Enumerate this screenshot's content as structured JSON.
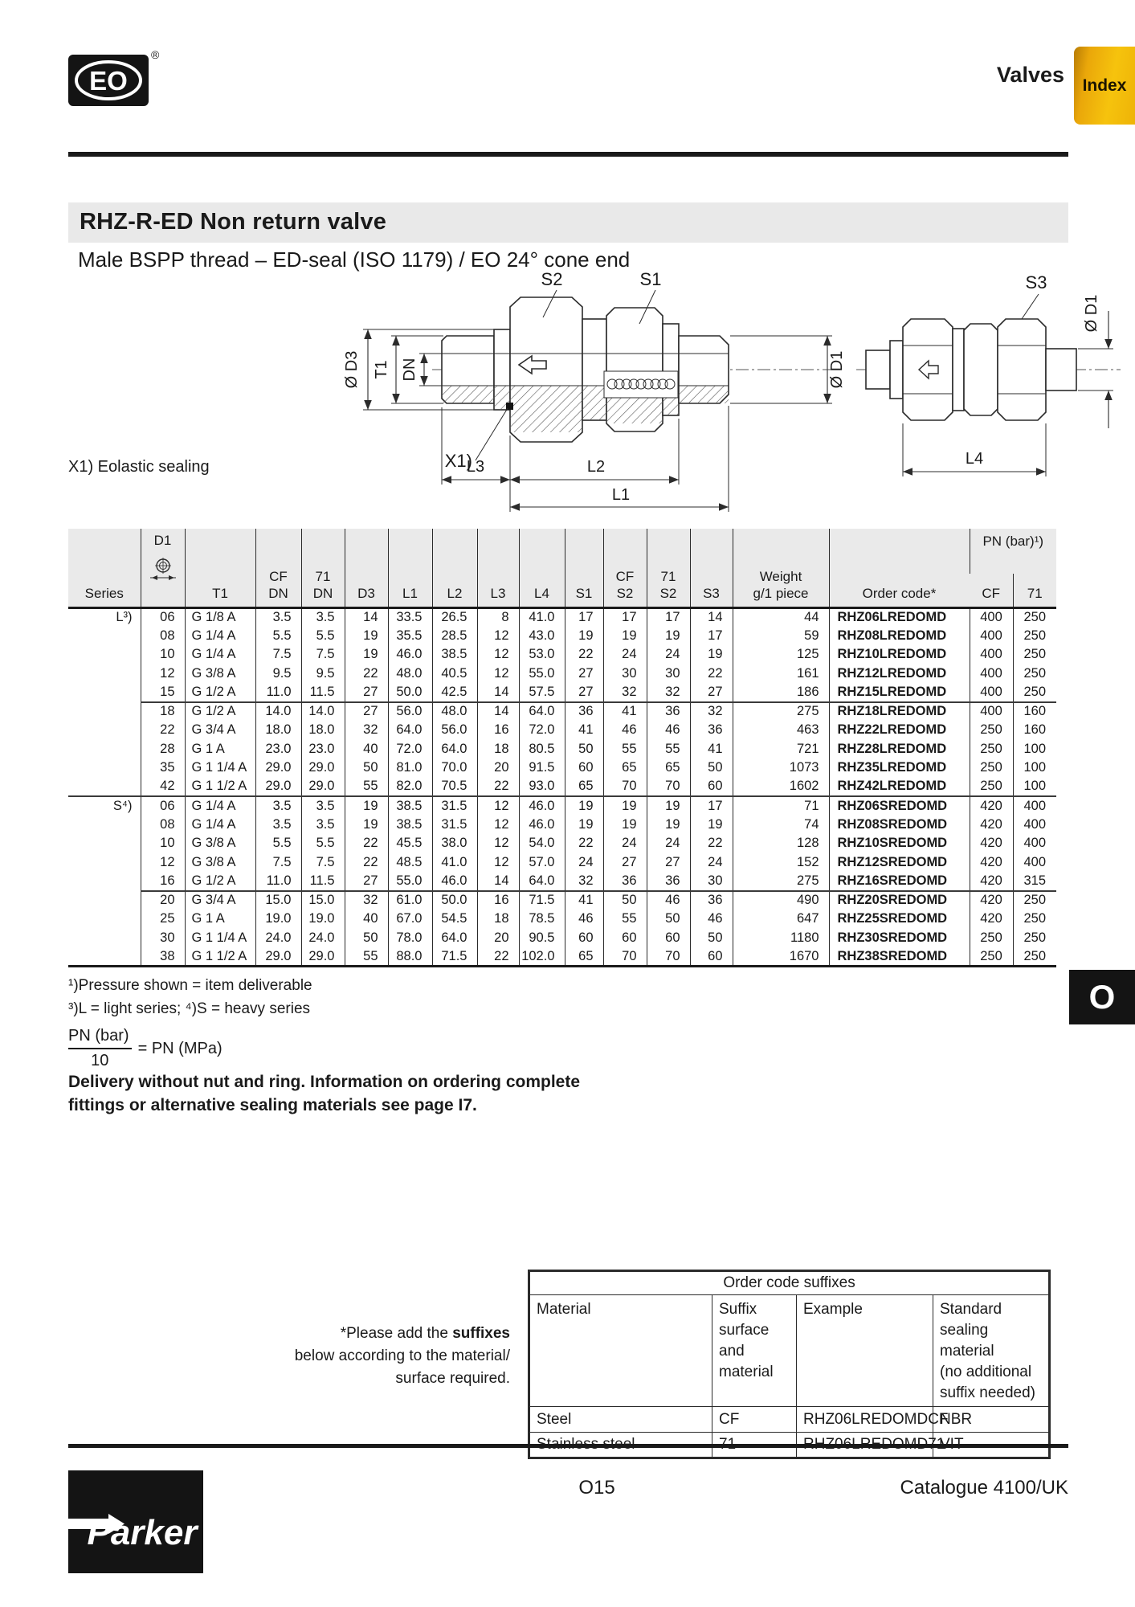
{
  "header": {
    "logo_text": "EO",
    "registered": "®",
    "section_title": "Valves",
    "index_tab": "Index"
  },
  "title_bar": {
    "title": "RHZ-R-ED  Non return valve"
  },
  "subtitle": "Male BSPP thread – ED-seal (ISO 1179) / EO 24° cone end",
  "drawing": {
    "note": "X1) Eolastic sealing",
    "labels": {
      "s1": "S1",
      "s2": "S2",
      "s3": "S3",
      "d3": "Ø D3",
      "t1": "T1",
      "dn": "DN",
      "d1_main": "Ø D1",
      "d1_side": "Ø D1",
      "x1": "X1)",
      "l1": "L1",
      "l2": "L2",
      "l3": "L3",
      "l4": "L4"
    }
  },
  "table": {
    "headers": {
      "series": "Series",
      "d1": "D1",
      "t1": "T1",
      "cf": "CF",
      "dn": "DN",
      "n71": "71",
      "d3": "D3",
      "l1": "L1",
      "l2": "L2",
      "l3": "L3",
      "l4": "L4",
      "s1": "S1",
      "s2": "S2",
      "s3": "S3",
      "weight_line1": "Weight",
      "weight_line2": "g/1 piece",
      "order_code": "Order code*",
      "pn": "PN (bar)¹)",
      "pn_cf": "CF",
      "pn_71": "71"
    },
    "rows": [
      {
        "s": "L³)",
        "sep": "",
        "c": [
          "06",
          "G 1/8 A",
          "3.5",
          "3.5",
          "14",
          "33.5",
          "26.5",
          "8",
          "41.0",
          "17",
          "17",
          "17",
          "14",
          "44",
          "RHZ06LREDOMD",
          "400",
          "250"
        ]
      },
      {
        "s": "",
        "sep": "",
        "c": [
          "08",
          "G 1/4 A",
          "5.5",
          "5.5",
          "19",
          "35.5",
          "28.5",
          "12",
          "43.0",
          "19",
          "19",
          "19",
          "17",
          "59",
          "RHZ08LREDOMD",
          "400",
          "250"
        ]
      },
      {
        "s": "",
        "sep": "",
        "c": [
          "10",
          "G 1/4 A",
          "7.5",
          "7.5",
          "19",
          "46.0",
          "38.5",
          "12",
          "53.0",
          "22",
          "24",
          "24",
          "19",
          "125",
          "RHZ10LREDOMD",
          "400",
          "250"
        ]
      },
      {
        "s": "",
        "sep": "",
        "c": [
          "12",
          "G 3/8 A",
          "9.5",
          "9.5",
          "22",
          "48.0",
          "40.5",
          "12",
          "55.0",
          "27",
          "30",
          "30",
          "22",
          "161",
          "RHZ12LREDOMD",
          "400",
          "250"
        ]
      },
      {
        "s": "",
        "sep": "",
        "c": [
          "15",
          "G 1/2 A",
          "11.0",
          "11.5",
          "27",
          "50.0",
          "42.5",
          "14",
          "57.5",
          "27",
          "32",
          "32",
          "27",
          "186",
          "RHZ15LREDOMD",
          "400",
          "250"
        ]
      },
      {
        "s": "",
        "sep": "part",
        "c": [
          "18",
          "G 1/2 A",
          "14.0",
          "14.0",
          "27",
          "56.0",
          "48.0",
          "14",
          "64.0",
          "36",
          "41",
          "36",
          "32",
          "275",
          "RHZ18LREDOMD",
          "400",
          "160"
        ]
      },
      {
        "s": "",
        "sep": "",
        "c": [
          "22",
          "G 3/4 A",
          "18.0",
          "18.0",
          "32",
          "64.0",
          "56.0",
          "16",
          "72.0",
          "41",
          "46",
          "46",
          "36",
          "463",
          "RHZ22LREDOMD",
          "250",
          "160"
        ]
      },
      {
        "s": "",
        "sep": "",
        "c": [
          "28",
          "G 1 A",
          "23.0",
          "23.0",
          "40",
          "72.0",
          "64.0",
          "18",
          "80.5",
          "50",
          "55",
          "55",
          "41",
          "721",
          "RHZ28LREDOMD",
          "250",
          "100"
        ]
      },
      {
        "s": "",
        "sep": "",
        "c": [
          "35",
          "G 1 1/4 A",
          "29.0",
          "29.0",
          "50",
          "81.0",
          "70.0",
          "20",
          "91.5",
          "60",
          "65",
          "65",
          "50",
          "1073",
          "RHZ35LREDOMD",
          "250",
          "100"
        ]
      },
      {
        "s": "",
        "sep": "",
        "c": [
          "42",
          "G 1 1/2 A",
          "29.0",
          "29.0",
          "55",
          "82.0",
          "70.5",
          "22",
          "93.0",
          "65",
          "70",
          "70",
          "60",
          "1602",
          "RHZ42LREDOMD",
          "250",
          "100"
        ]
      },
      {
        "s": "S⁴)",
        "sep": "full",
        "c": [
          "06",
          "G 1/4 A",
          "3.5",
          "3.5",
          "19",
          "38.5",
          "31.5",
          "12",
          "46.0",
          "19",
          "19",
          "19",
          "17",
          "71",
          "RHZ06SREDOMD",
          "420",
          "400"
        ]
      },
      {
        "s": "",
        "sep": "",
        "c": [
          "08",
          "G 1/4 A",
          "3.5",
          "3.5",
          "19",
          "38.5",
          "31.5",
          "12",
          "46.0",
          "19",
          "19",
          "19",
          "19",
          "74",
          "RHZ08SREDOMD",
          "420",
          "400"
        ]
      },
      {
        "s": "",
        "sep": "",
        "c": [
          "10",
          "G 3/8 A",
          "5.5",
          "5.5",
          "22",
          "45.5",
          "38.0",
          "12",
          "54.0",
          "22",
          "24",
          "24",
          "22",
          "128",
          "RHZ10SREDOMD",
          "420",
          "400"
        ]
      },
      {
        "s": "",
        "sep": "",
        "c": [
          "12",
          "G 3/8 A",
          "7.5",
          "7.5",
          "22",
          "48.5",
          "41.0",
          "12",
          "57.0",
          "24",
          "27",
          "27",
          "24",
          "152",
          "RHZ12SREDOMD",
          "420",
          "400"
        ]
      },
      {
        "s": "",
        "sep": "",
        "c": [
          "16",
          "G 1/2 A",
          "11.0",
          "11.5",
          "27",
          "55.0",
          "46.0",
          "14",
          "64.0",
          "32",
          "36",
          "36",
          "30",
          "275",
          "RHZ16SREDOMD",
          "420",
          "315"
        ]
      },
      {
        "s": "",
        "sep": "part",
        "c": [
          "20",
          "G 3/4 A",
          "15.0",
          "15.0",
          "32",
          "61.0",
          "50.0",
          "16",
          "71.5",
          "41",
          "50",
          "46",
          "36",
          "490",
          "RHZ20SREDOMD",
          "420",
          "250"
        ]
      },
      {
        "s": "",
        "sep": "",
        "c": [
          "25",
          "G 1 A",
          "19.0",
          "19.0",
          "40",
          "67.0",
          "54.5",
          "18",
          "78.5",
          "46",
          "55",
          "50",
          "46",
          "647",
          "RHZ25SREDOMD",
          "420",
          "250"
        ]
      },
      {
        "s": "",
        "sep": "",
        "c": [
          "30",
          "G 1 1/4 A",
          "24.0",
          "24.0",
          "50",
          "78.0",
          "64.0",
          "20",
          "90.5",
          "60",
          "60",
          "60",
          "50",
          "1180",
          "RHZ30SREDOMD",
          "250",
          "250"
        ]
      },
      {
        "s": "",
        "sep": "",
        "c": [
          "38",
          "G 1 1/2 A",
          "29.0",
          "29.0",
          "55",
          "88.0",
          "71.5",
          "22",
          "102.0",
          "65",
          "70",
          "70",
          "60",
          "1670",
          "RHZ38SREDOMD",
          "250",
          "250"
        ]
      }
    ]
  },
  "footnotes": {
    "f1": "¹)Pressure shown = item deliverable",
    "f2": "³)L = light series; ⁴)S = heavy series",
    "frac_top": "PN (bar)",
    "frac_bottom": "10",
    "frac_eq": "= PN (MPa)",
    "delivery_line1": "Delivery without nut and ring. Information on ordering complete",
    "delivery_line2": "fittings or alternative sealing materials see page I7."
  },
  "suffix_note": {
    "line1_prefix": "*Please add the ",
    "line1_bold": "suffixes",
    "line2": "below according to the material/",
    "line3": "surface required."
  },
  "suffix_table": {
    "title": "Order code suffixes",
    "columns": [
      [
        "Material"
      ],
      [
        "Suffix",
        "surface",
        "and material"
      ],
      [
        "Example"
      ],
      [
        "Standard",
        "sealing material",
        "(no additional",
        "suffix needed)"
      ]
    ],
    "rows": [
      [
        "Steel",
        "CF",
        "RHZ06LREDOMDCF",
        "NBR"
      ],
      [
        "Stainless steel",
        "71",
        "RHZ06LREDOMD71",
        "VIT"
      ]
    ]
  },
  "side_tab": "O",
  "footer": {
    "brand": "Parker",
    "page": "O15",
    "catalogue": "Catalogue 4100/UK"
  }
}
